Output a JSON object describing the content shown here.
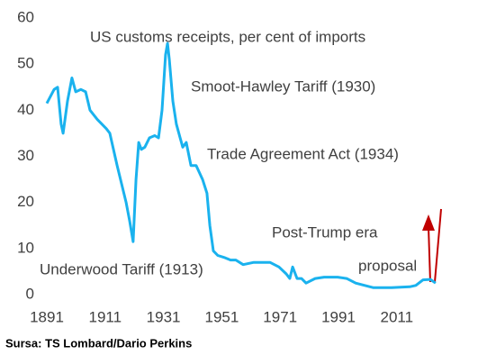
{
  "chart_data": {
    "type": "line",
    "title": "US customs receipts, per cent of imports",
    "x": [
      1891,
      1893.5,
      1894.7,
      1895.9,
      1896.6,
      1898.1,
      1899.6,
      1900.9,
      1902.7,
      1904.3,
      1905.8,
      1908.3,
      1911.4,
      1912.6,
      1915.1,
      1918.2,
      1919.4,
      1920.6,
      1921.6,
      1922.5,
      1923.4,
      1924.6,
      1926.2,
      1928,
      1929.3,
      1930.5,
      1931.7,
      1932.4,
      1933,
      1934.2,
      1935.4,
      1936.7,
      1937.6,
      1938.8,
      1940.4,
      1942.2,
      1944.4,
      1945.9,
      1946.9,
      1948.1,
      1949.6,
      1952.1,
      1954,
      1955.8,
      1958.3,
      1962,
      1964.5,
      1967.5,
      1970.6,
      1973.1,
      1974.3,
      1975.3,
      1976.8,
      1978.3,
      1979.9,
      1983,
      1986.1,
      1990.7,
      1993.8,
      1996.9,
      2000,
      2003,
      2009.2,
      2015.4,
      2017.5,
      2020,
      2022.5,
      2024.3
    ],
    "series": [
      {
        "name": "US customs receipts",
        "color": "#1ab2ee",
        "values": [
          41.5,
          44.5,
          45,
          37,
          35,
          42,
          47,
          44,
          44.5,
          44,
          40,
          38,
          36,
          35,
          28,
          20,
          16,
          11.5,
          25,
          33,
          31.5,
          32,
          34,
          34.5,
          34,
          40,
          52,
          54.5,
          51,
          42,
          37,
          34,
          32,
          33,
          28,
          28,
          25,
          22,
          15,
          9.5,
          8.5,
          8,
          7.5,
          7.5,
          6.5,
          7,
          7,
          7,
          6,
          4.5,
          3.5,
          6,
          3.5,
          3.5,
          2.5,
          3.5,
          3.8,
          3.8,
          3.5,
          2.5,
          2,
          1.5,
          1.5,
          1.7,
          2,
          3.2,
          3.3,
          2.5
        ]
      }
    ],
    "xlim": [
      1891,
      2026
    ],
    "ylim": [
      0,
      60
    ],
    "xticks": [
      1891,
      1911,
      1931,
      1951,
      1971,
      1991,
      2011
    ],
    "yticks": [
      0,
      10,
      20,
      30,
      40,
      50,
      60
    ],
    "annotations": [
      "Smoot-Hawley Tariff (1930)",
      "Trade Agreement Act (1934)",
      "Post-Trump era",
      "proposal",
      "Underwood Tariff (1913)"
    ],
    "source": "Sursa: TS Lombard/Dario Perkins"
  }
}
